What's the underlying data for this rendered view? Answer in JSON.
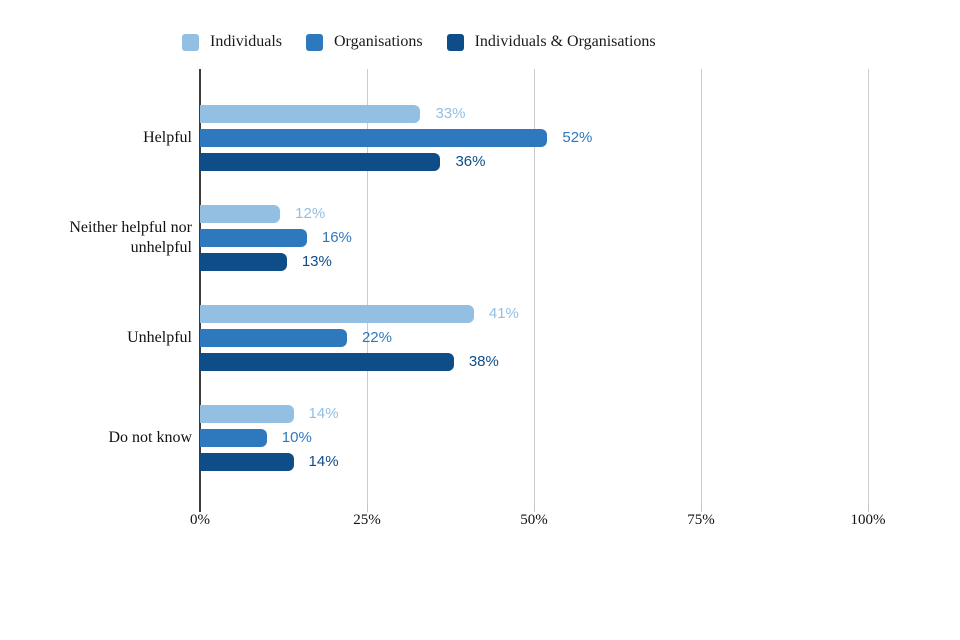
{
  "chart_data": {
    "type": "bar",
    "orientation": "horizontal",
    "title": "",
    "categories": [
      "Helpful",
      "Neither helpful nor unhelpful",
      "Unhelpful",
      "Do not know"
    ],
    "series": [
      {
        "name": "Individuals",
        "color": "#93BFE3",
        "values": [
          33,
          12,
          41,
          14
        ]
      },
      {
        "name": "Organisations",
        "color": "#2E79BD",
        "values": [
          52,
          16,
          22,
          10
        ]
      },
      {
        "name": "Individuals & Organisations",
        "color": "#0E4D87",
        "values": [
          36,
          13,
          38,
          14
        ]
      }
    ],
    "value_suffix": "%",
    "x_ticks": [
      "0%",
      "25%",
      "50%",
      "75%",
      "100%"
    ],
    "xlim": [
      0,
      100
    ],
    "grid": true,
    "legend_position": "top",
    "colors": {
      "gridline": "#cccccc",
      "axis": "#3b3b3b",
      "text": "#111111"
    }
  }
}
